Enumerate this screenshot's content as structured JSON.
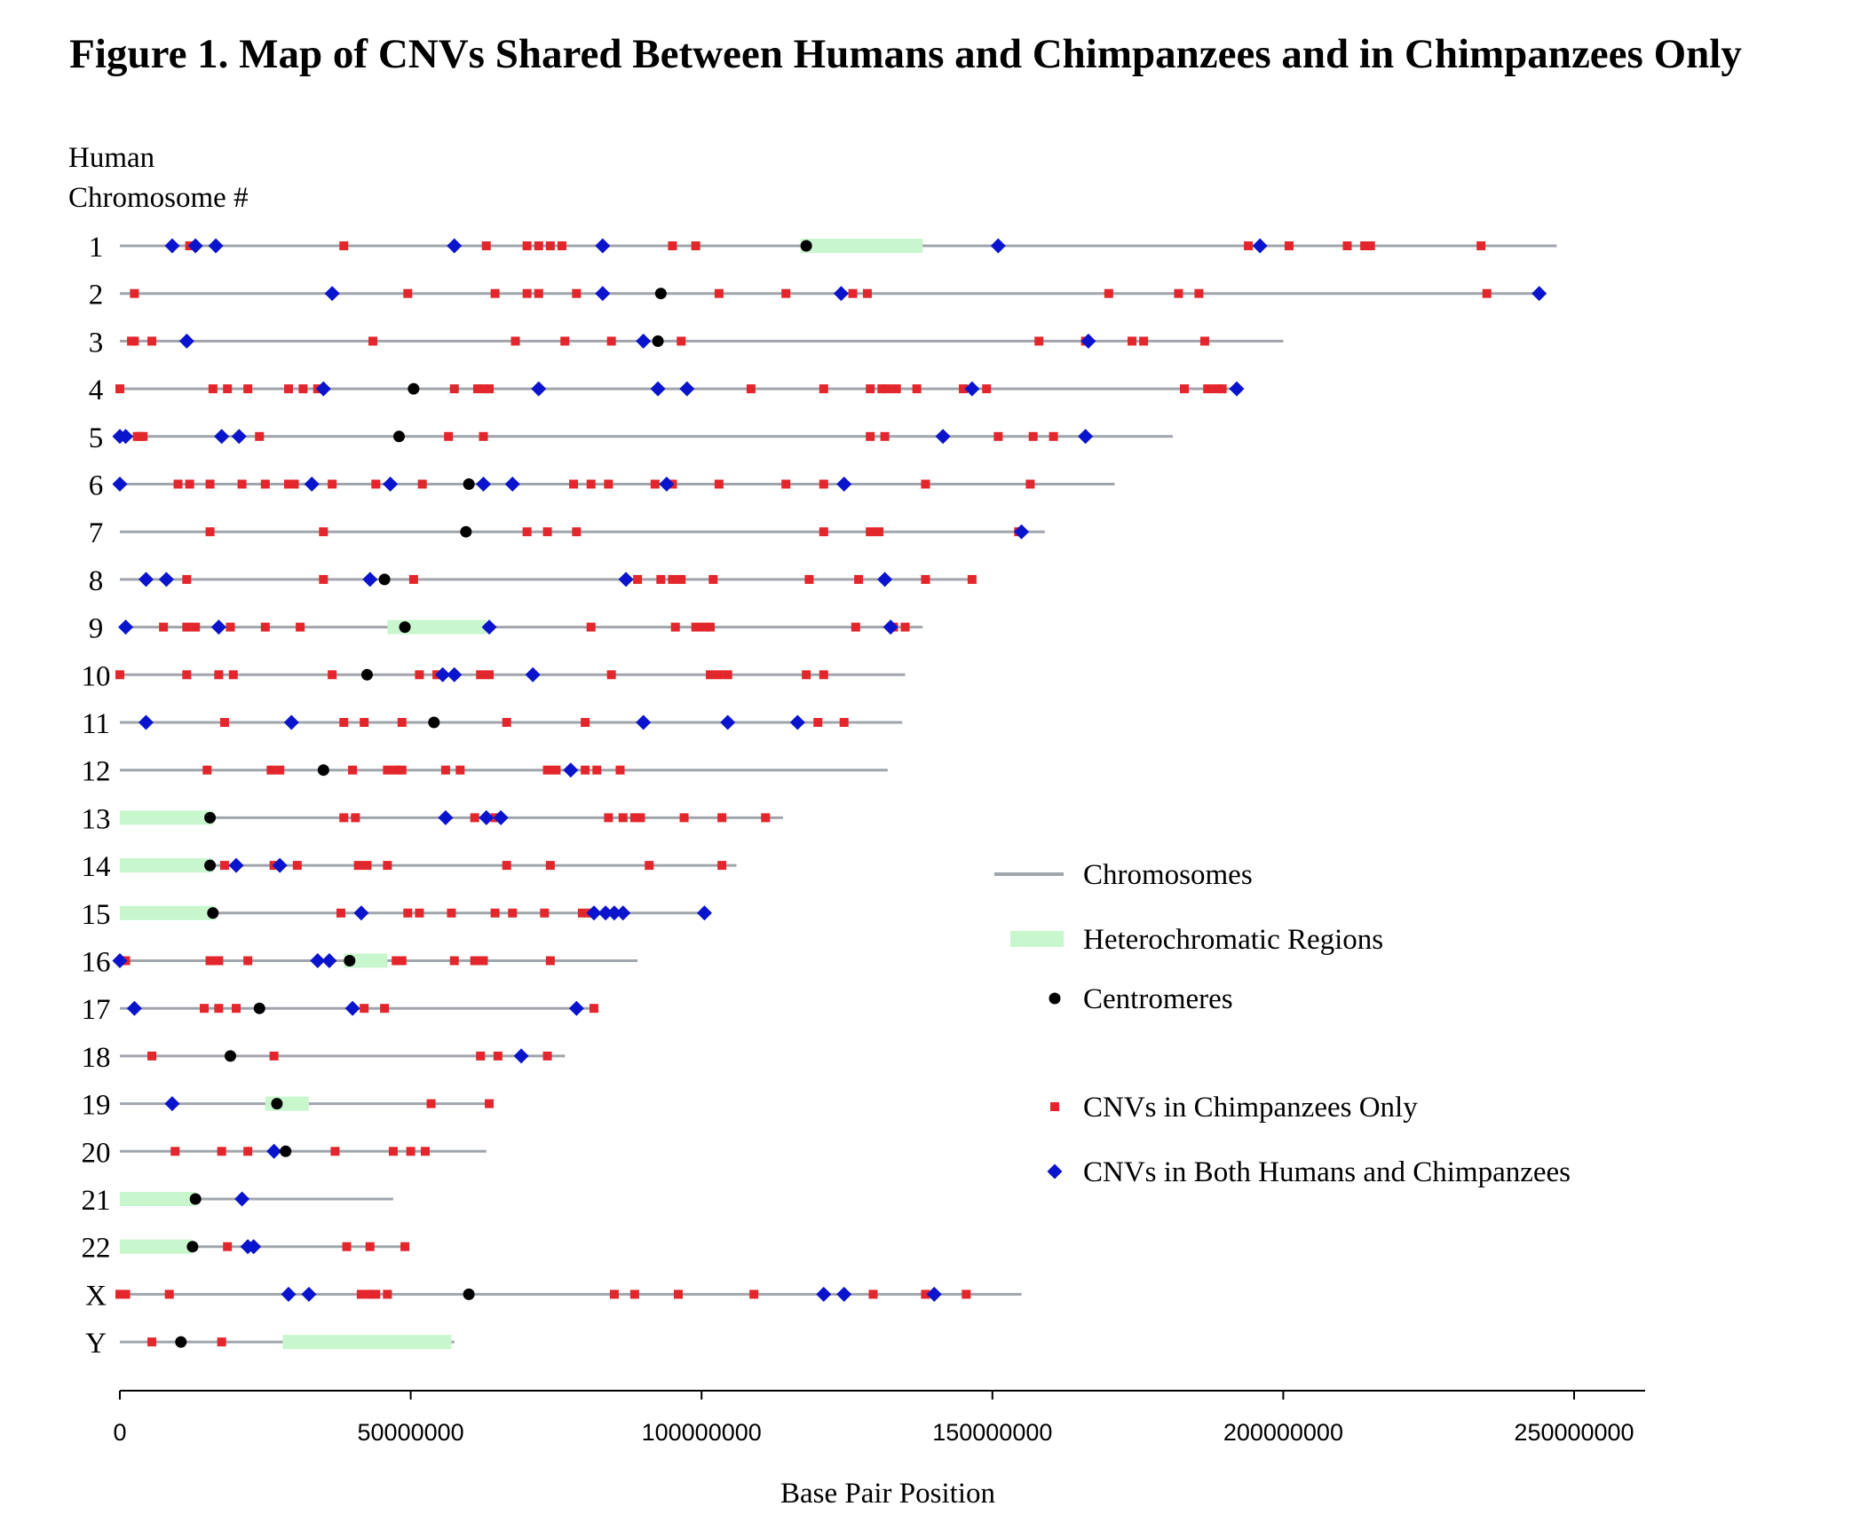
{
  "chart_data": {
    "type": "scatter",
    "title": "Figure 1. Map of CNVs Shared Between Humans and Chimpanzees and in Chimpanzees Only",
    "ylabel_lines": [
      "Human",
      "Chromosome #"
    ],
    "xlabel": "Base Pair Position",
    "xlim": [
      0,
      260000000
    ],
    "xticks": [
      0,
      50000000,
      100000000,
      150000000,
      200000000,
      250000000
    ],
    "xtick_labels": [
      "0",
      "50000000",
      "100000000",
      "150000000",
      "200000000",
      "250000000"
    ],
    "colors": {
      "chromosome": "#a0a4ac",
      "heterochromatin": "#c8f7cd",
      "centromere": "#000000",
      "chimp_only": "#e3262c",
      "both": "#0a14cc"
    },
    "legend": {
      "position": "right",
      "items": [
        {
          "kind": "line",
          "label": "Chromosomes"
        },
        {
          "kind": "hetero",
          "label": "Heterochromatic Regions"
        },
        {
          "kind": "centromere",
          "label": "Centromeres"
        },
        {
          "kind": "chimp",
          "label": "CNVs in Chimpanzees Only"
        },
        {
          "kind": "both",
          "label": "CNVs in Both Humans and Chimpanzees"
        }
      ]
    },
    "chromosomes": [
      {
        "name": "1",
        "length": 247000000,
        "centromere": 118000000,
        "hetero": [
          [
            117000000,
            138000000
          ]
        ],
        "chimp_only": [
          12000000,
          38500000,
          63000000,
          70000000,
          72000000,
          74000000,
          76000000,
          95000000,
          99000000,
          194000000,
          201000000,
          211000000,
          214000000,
          215000000,
          234000000
        ],
        "both": [
          9000000,
          13000000,
          16500000,
          57500000,
          83000000,
          151000000,
          196000000
        ]
      },
      {
        "name": "2",
        "length": 244000000,
        "centromere": 93000000,
        "hetero": [],
        "chimp_only": [
          2500000,
          49500000,
          64500000,
          70000000,
          72000000,
          78500000,
          103000000,
          114500000,
          126000000,
          128500000,
          170000000,
          182000000,
          185500000,
          235000000
        ],
        "both": [
          36500000,
          83000000,
          124000000,
          244000000
        ]
      },
      {
        "name": "3",
        "length": 200000000,
        "centromere": 92500000,
        "hetero": [],
        "chimp_only": [
          2000000,
          2500000,
          5500000,
          43500000,
          68000000,
          76500000,
          84500000,
          96500000,
          158000000,
          166000000,
          174000000,
          176000000,
          186500000
        ],
        "both": [
          11500000,
          90000000,
          166500000
        ]
      },
      {
        "name": "4",
        "length": 192000000,
        "centromere": 50500000,
        "hetero": [],
        "chimp_only": [
          0,
          16000000,
          18500000,
          22000000,
          29000000,
          31500000,
          34000000,
          57500000,
          61500000,
          62500000,
          63500000,
          108500000,
          121000000,
          129000000,
          131000000,
          132000000,
          133500000,
          137000000,
          145000000,
          149000000,
          183000000,
          187000000,
          188500000,
          189500000
        ],
        "both": [
          35000000,
          72000000,
          92500000,
          97500000,
          146500000,
          192000000
        ]
      },
      {
        "name": "5",
        "length": 181000000,
        "centromere": 48000000,
        "hetero": [],
        "chimp_only": [
          3000000,
          3500000,
          4000000,
          24000000,
          56500000,
          62500000,
          129000000,
          131500000,
          151000000,
          157000000,
          160500000
        ],
        "both": [
          0,
          1000000,
          17500000,
          20500000,
          141500000,
          166000000
        ]
      },
      {
        "name": "6",
        "length": 171000000,
        "centromere": 60000000,
        "hetero": [],
        "chimp_only": [
          10000000,
          12000000,
          15500000,
          21000000,
          25000000,
          29000000,
          30000000,
          36500000,
          44000000,
          52000000,
          78000000,
          81000000,
          84000000,
          92000000,
          95000000,
          103000000,
          114500000,
          121000000,
          138500000,
          156500000
        ],
        "both": [
          0,
          33000000,
          46500000,
          62500000,
          67500000,
          94000000,
          124500000
        ]
      },
      {
        "name": "7",
        "length": 159000000,
        "centromere": 59500000,
        "hetero": [],
        "chimp_only": [
          15500000,
          35000000,
          70000000,
          73500000,
          78500000,
          121000000,
          129000000,
          130500000,
          154500000
        ],
        "both": [
          155000000
        ]
      },
      {
        "name": "8",
        "length": 146000000,
        "centromere": 45500000,
        "hetero": [],
        "chimp_only": [
          11500000,
          35000000,
          50500000,
          89000000,
          93000000,
          95000000,
          96500000,
          102000000,
          118500000,
          127000000,
          138500000,
          146500000
        ],
        "both": [
          4500000,
          8000000,
          43000000,
          87000000,
          131500000
        ]
      },
      {
        "name": "9",
        "length": 138000000,
        "centromere": 49000000,
        "hetero": [
          [
            46000000,
            63000000
          ]
        ],
        "chimp_only": [
          7500000,
          11500000,
          13000000,
          19000000,
          25000000,
          31000000,
          81000000,
          95500000,
          99000000,
          100500000,
          101500000,
          126500000,
          133000000,
          135000000
        ],
        "both": [
          1000000,
          17000000,
          63500000,
          132500000
        ]
      },
      {
        "name": "10",
        "length": 135000000,
        "centromere": 42500000,
        "hetero": [],
        "chimp_only": [
          0,
          11500000,
          17000000,
          19500000,
          36500000,
          51500000,
          54500000,
          62000000,
          63500000,
          84500000,
          101500000,
          103000000,
          104500000,
          118000000,
          121000000
        ],
        "both": [
          55500000,
          57500000,
          71000000
        ]
      },
      {
        "name": "11",
        "length": 134500000,
        "centromere": 54000000,
        "hetero": [],
        "chimp_only": [
          18000000,
          38500000,
          42000000,
          48500000,
          66500000,
          80000000,
          120000000,
          124500000
        ],
        "both": [
          4500000,
          29500000,
          90000000,
          104500000,
          116500000
        ]
      },
      {
        "name": "12",
        "length": 132000000,
        "centromere": 35000000,
        "hetero": [],
        "chimp_only": [
          15000000,
          26000000,
          27500000,
          40000000,
          46000000,
          47500000,
          48500000,
          56000000,
          58500000,
          73500000,
          75000000,
          80000000,
          82000000,
          86000000
        ],
        "both": [
          77500000
        ]
      },
      {
        "name": "13",
        "length": 114000000,
        "centromere": 15500000,
        "hetero": [
          [
            0,
            16000000
          ]
        ],
        "chimp_only": [
          38500000,
          40500000,
          61000000,
          64500000,
          84000000,
          86500000,
          88500000,
          89500000,
          97000000,
          103500000,
          111000000
        ],
        "both": [
          56000000,
          63000000,
          65500000
        ]
      },
      {
        "name": "14",
        "length": 106000000,
        "centromere": 15500000,
        "hetero": [
          [
            0,
            16000000
          ]
        ],
        "chimp_only": [
          18000000,
          26500000,
          30500000,
          41000000,
          42500000,
          46000000,
          66500000,
          74000000,
          91000000,
          103500000
        ],
        "both": [
          20000000,
          27500000
        ]
      },
      {
        "name": "15",
        "length": 100000000,
        "centromere": 16000000,
        "hetero": [
          [
            0,
            16500000
          ]
        ],
        "chimp_only": [
          38000000,
          49500000,
          51500000,
          57000000,
          64500000,
          67500000,
          73000000,
          79500000,
          81000000
        ],
        "both": [
          41500000,
          81500000,
          83500000,
          85000000,
          86500000,
          100500000
        ]
      },
      {
        "name": "16",
        "length": 89000000,
        "centromere": 39500000,
        "hetero": [
          [
            38500000,
            46000000
          ]
        ],
        "chimp_only": [
          1000000,
          15500000,
          17000000,
          22000000,
          47500000,
          48500000,
          57500000,
          61000000,
          62500000,
          74000000
        ],
        "both": [
          0,
          34000000,
          36000000
        ]
      },
      {
        "name": "17",
        "length": 82000000,
        "centromere": 24000000,
        "hetero": [],
        "chimp_only": [
          14500000,
          17000000,
          20000000,
          42000000,
          45500000,
          81500000
        ],
        "both": [
          2500000,
          40000000,
          78500000
        ]
      },
      {
        "name": "18",
        "length": 76500000,
        "centromere": 19000000,
        "hetero": [],
        "chimp_only": [
          5500000,
          26500000,
          62000000,
          65000000,
          73500000
        ],
        "both": [
          69000000
        ]
      },
      {
        "name": "19",
        "length": 64000000,
        "centromere": 27000000,
        "hetero": [
          [
            25000000,
            32500000
          ]
        ],
        "chimp_only": [
          53500000,
          63500000
        ],
        "both": [
          9000000
        ]
      },
      {
        "name": "20",
        "length": 63000000,
        "centromere": 28500000,
        "hetero": [],
        "chimp_only": [
          9500000,
          17500000,
          22000000,
          37000000,
          47000000,
          50000000,
          52500000
        ],
        "both": [
          26500000
        ]
      },
      {
        "name": "21",
        "length": 47000000,
        "centromere": 13000000,
        "hetero": [
          [
            0,
            13000000
          ]
        ],
        "chimp_only": [],
        "both": [
          21000000
        ]
      },
      {
        "name": "22",
        "length": 49500000,
        "centromere": 12500000,
        "hetero": [
          [
            0,
            12500000
          ]
        ],
        "chimp_only": [
          18500000,
          39000000,
          43000000,
          49000000
        ],
        "both": [
          22000000,
          23000000
        ]
      },
      {
        "name": "X",
        "length": 155000000,
        "centromere": 60000000,
        "hetero": [],
        "chimp_only": [
          0,
          1000000,
          8500000,
          41500000,
          43000000,
          44000000,
          46000000,
          85000000,
          88500000,
          96000000,
          109000000,
          129500000,
          138500000,
          145500000
        ],
        "both": [
          29000000,
          32500000,
          121000000,
          124500000,
          140000000
        ]
      },
      {
        "name": "Y",
        "length": 57500000,
        "centromere": 10500000,
        "hetero": [
          [
            28000000,
            57000000
          ]
        ],
        "chimp_only": [
          5500000,
          17500000
        ],
        "both": []
      }
    ]
  }
}
